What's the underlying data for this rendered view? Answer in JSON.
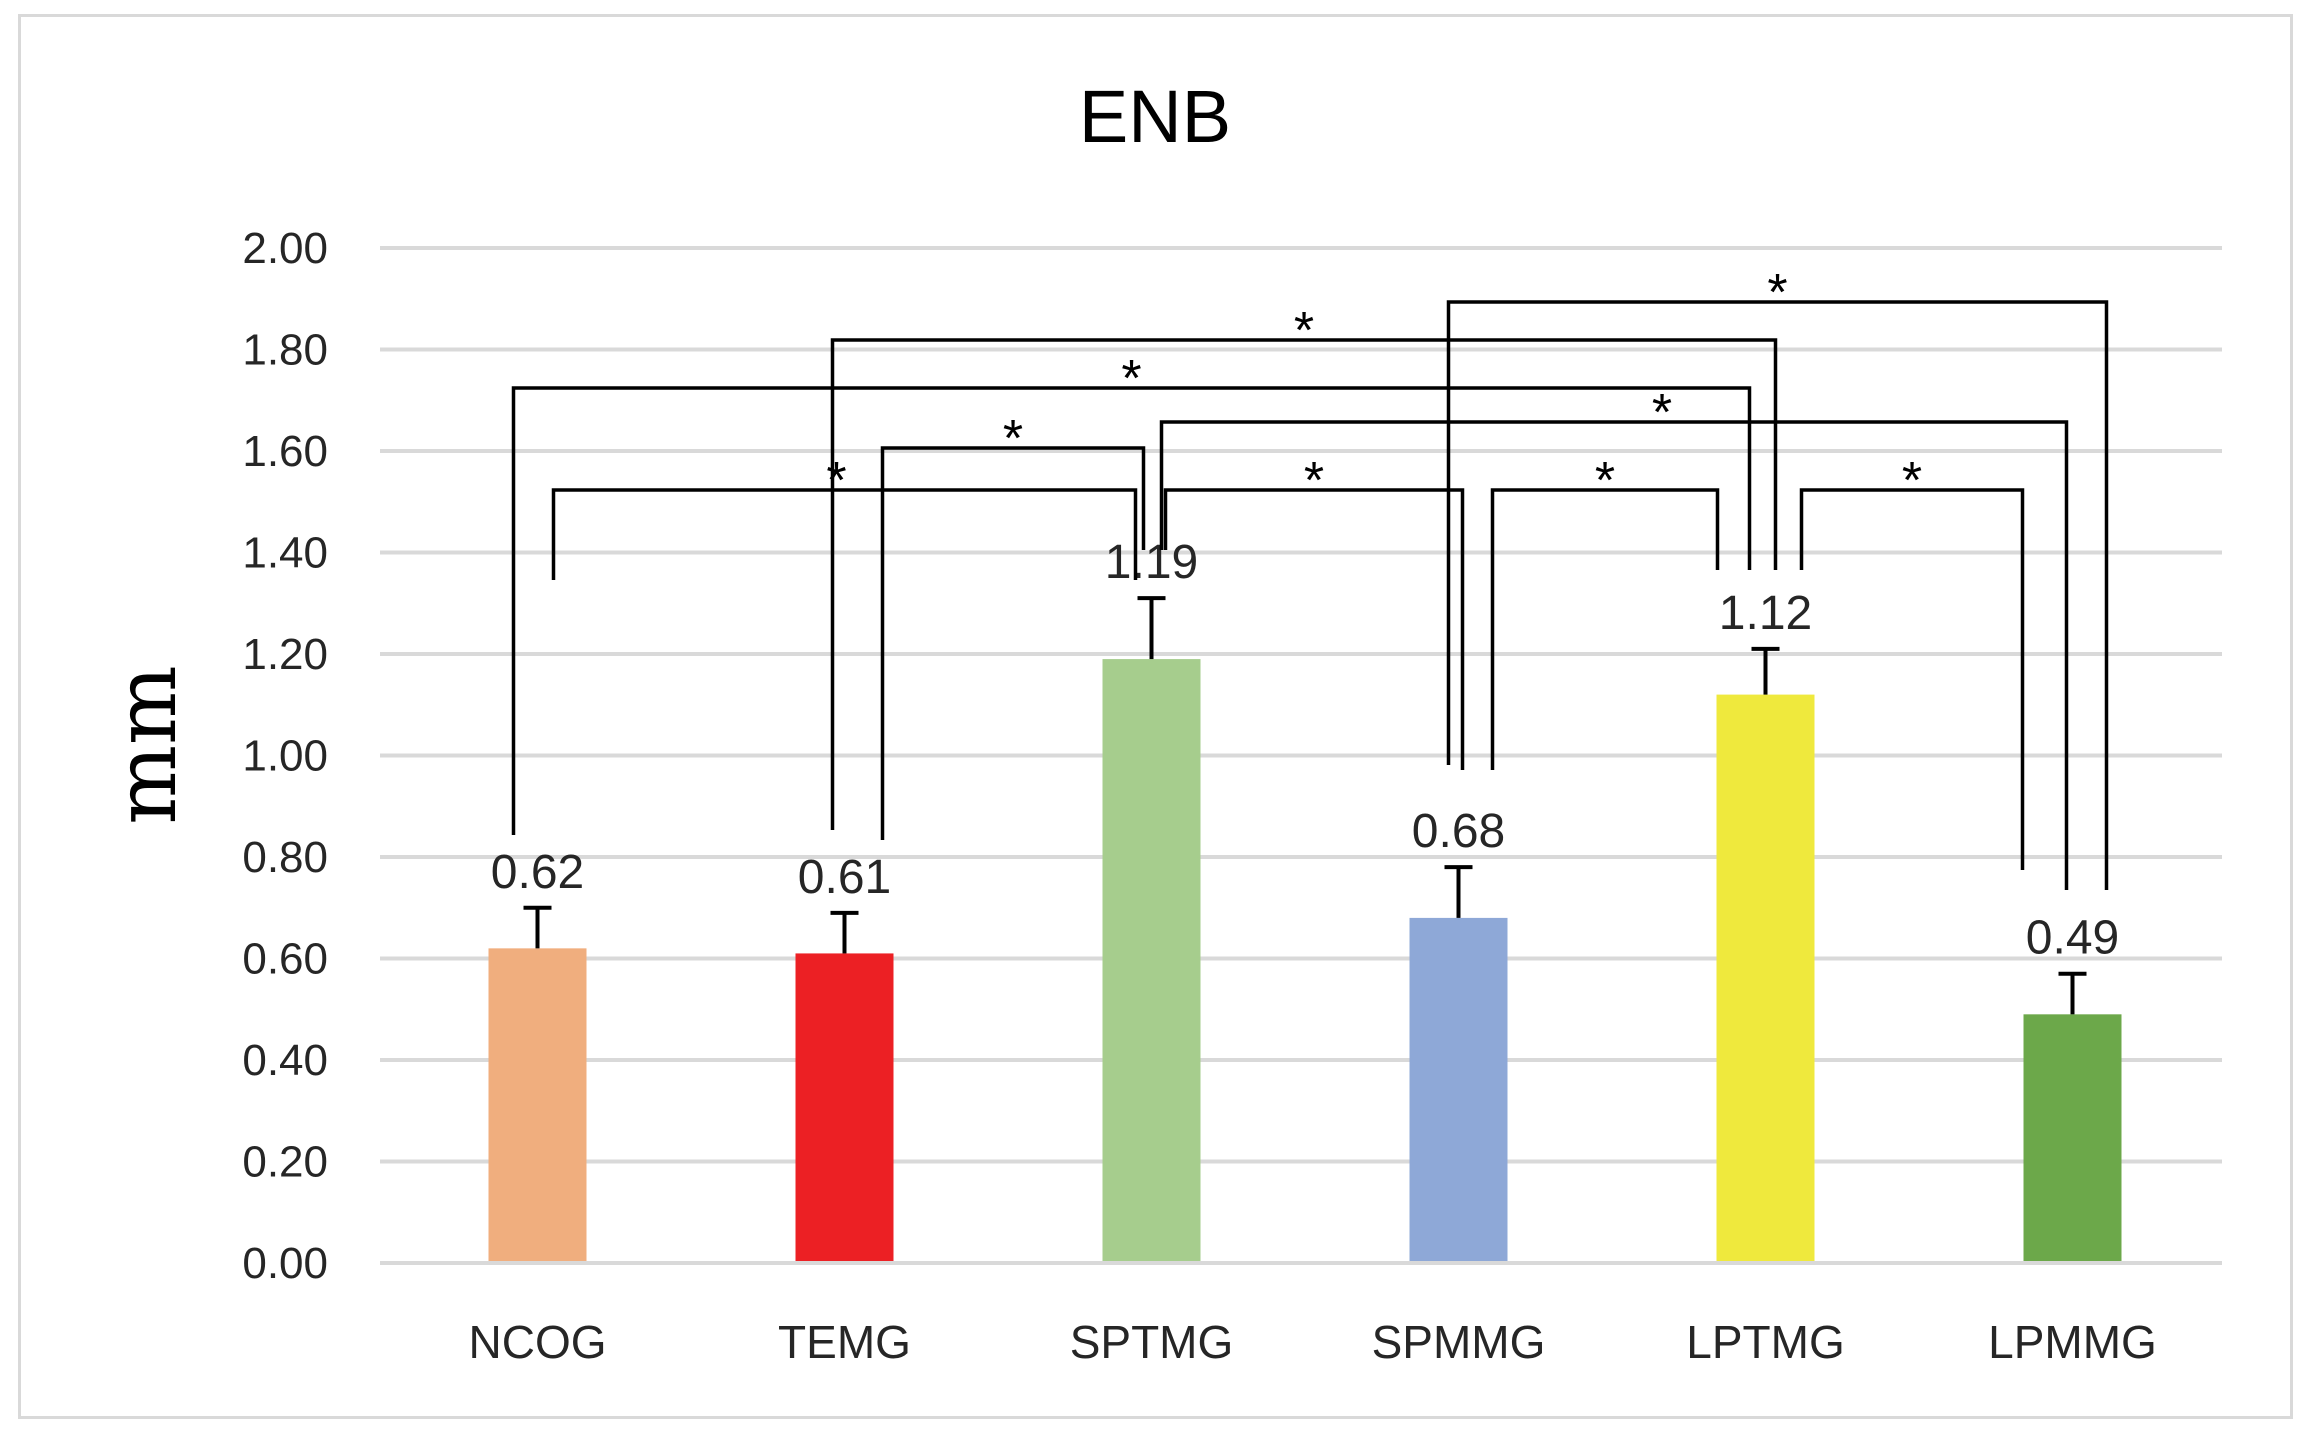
{
  "chart_data": {
    "type": "bar",
    "title": "ENB",
    "xlabel": "",
    "ylabel": "mm",
    "ylim": [
      0,
      2.0
    ],
    "ytick_step": 0.2,
    "ytick_labels": [
      "0.00",
      "0.20",
      "0.40",
      "0.60",
      "0.80",
      "1.00",
      "1.20",
      "1.40",
      "1.60",
      "1.80",
      "2.00"
    ],
    "grid": true,
    "legend": "none",
    "categories": [
      "NCOG",
      "TEMG",
      "SPTMG",
      "SPMMG",
      "LPTMG",
      "LPMMG"
    ],
    "values": [
      0.62,
      0.61,
      1.19,
      0.68,
      1.12,
      0.49
    ],
    "error_upper": [
      0.08,
      0.08,
      0.12,
      0.1,
      0.09,
      0.08
    ],
    "value_labels": [
      "0.62",
      "0.61",
      "1.19",
      "0.68",
      "1.12",
      "0.49"
    ],
    "bar_colors": [
      "#F0AE7E",
      "#EC2024",
      "#A6CD8D",
      "#8EA8D7",
      "#EFE93D",
      "#6CA84A"
    ],
    "significance": [
      {
        "from": "NCOG",
        "to": "SPTMG",
        "label": "*"
      },
      {
        "from": "TEMG",
        "to": "SPTMG",
        "label": "*"
      },
      {
        "from": "SPTMG",
        "to": "SPMMG",
        "label": "*"
      },
      {
        "from": "SPMMG",
        "to": "LPTMG",
        "label": "*"
      },
      {
        "from": "LPTMG",
        "to": "LPMMG",
        "label": "*"
      },
      {
        "from": "SPTMG",
        "to": "LPMMG",
        "label": "*"
      },
      {
        "from": "NCOG",
        "to": "LPTMG",
        "label": "*"
      },
      {
        "from": "TEMG",
        "to": "LPTMG",
        "label": "*"
      },
      {
        "from": "SPMMG",
        "to": "LPMMG",
        "label": "*"
      }
    ]
  }
}
